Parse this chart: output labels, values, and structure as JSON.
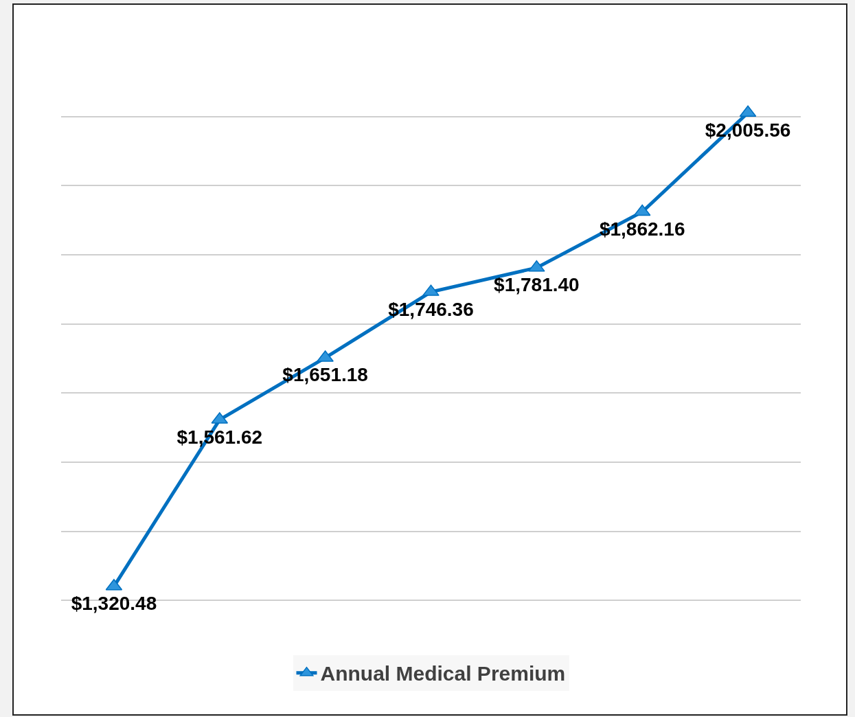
{
  "chart_data": {
    "type": "line",
    "categories": [
      null,
      null,
      null,
      null,
      null,
      null,
      null
    ],
    "series": [
      {
        "name": "Annual Medical Premium",
        "color": "#0070c0",
        "values": [
          1320.48,
          1561.62,
          1651.18,
          1746.36,
          1781.4,
          1862.16,
          2005.56
        ],
        "value_labels": [
          "$1,320.48",
          "$1,561.62",
          "$1,651.18",
          "$1,746.36",
          "$1,781.40",
          "$1,862.16",
          "$2,005.56"
        ]
      }
    ],
    "grid": "y",
    "legend": "bottom",
    "tick_labels": false,
    "marker": "triangle",
    "line_style": "solid"
  }
}
